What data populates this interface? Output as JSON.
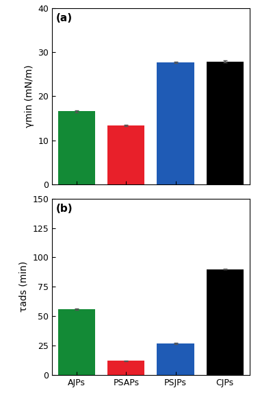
{
  "chart_data": [
    {
      "type": "bar",
      "title": "(a)",
      "y_label": "γmin (mN/m)",
      "categories": [
        "AJPs",
        "PSAPs",
        "PSJPs",
        "CJPs"
      ],
      "values": [
        16.6,
        13.4,
        27.7,
        27.9
      ],
      "errors": [
        0.2,
        0.2,
        0.2,
        0.2
      ],
      "colors": [
        "#138a36",
        "#e8202a",
        "#1f5bb5",
        "#000000"
      ],
      "ylim": [
        0,
        40
      ],
      "yticks": [
        0,
        10,
        20,
        30,
        40
      ],
      "tick_labels": "y"
    },
    {
      "type": "bar",
      "title": "(b)",
      "y_label": "τads (min)",
      "categories": [
        "AJPs",
        "PSAPs",
        "PSJPs",
        "CJPs"
      ],
      "values": [
        56,
        12,
        27,
        90
      ],
      "errors": [
        0.5,
        0.5,
        0.5,
        0.5
      ],
      "colors": [
        "#138a36",
        "#e8202a",
        "#1f5bb5",
        "#000000"
      ],
      "ylim": [
        0,
        150
      ],
      "yticks": [
        0,
        25,
        50,
        75,
        100,
        125,
        150
      ]
    }
  ]
}
